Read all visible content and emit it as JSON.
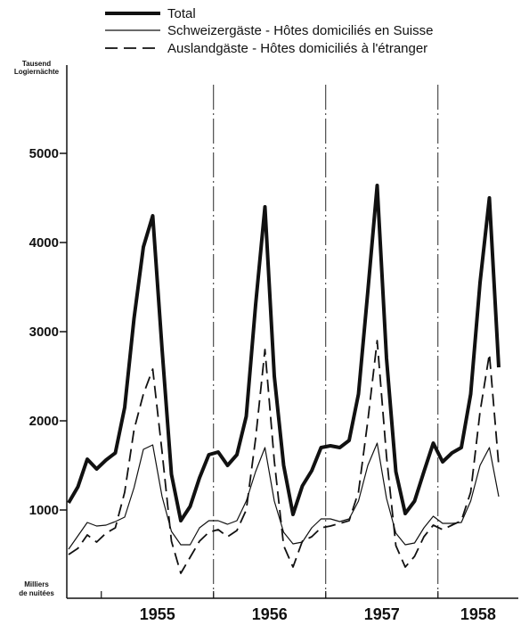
{
  "chart_data": {
    "type": "line",
    "title": "",
    "y_unit_label_top": [
      "Tausend",
      "Logiernächte"
    ],
    "y_unit_label_bottom": [
      "Milliers",
      "de nuitées"
    ],
    "ylim": [
      0,
      6000
    ],
    "yticks": [
      1000,
      2000,
      3000,
      4000,
      5000
    ],
    "ytick_labels": [
      "1000",
      "2000",
      "3000",
      "4000",
      "5000"
    ],
    "years": [
      "1955",
      "1956",
      "1957",
      "1958"
    ],
    "x_start": "1954-09",
    "grid": false,
    "legend_position": "top",
    "series": [
      {
        "name": "Total",
        "style": "thick",
        "values": [
          1080,
          1260,
          1570,
          1460,
          1560,
          1640,
          2150,
          3150,
          3950,
          4300,
          2800,
          1400,
          880,
          1040,
          1360,
          1620,
          1650,
          1500,
          1620,
          2050,
          3300,
          4400,
          2500,
          1500,
          950,
          1270,
          1440,
          1700,
          1720,
          1700,
          1780,
          2300,
          3450,
          4640,
          2700,
          1430,
          960,
          1100,
          1430,
          1750,
          1540,
          1640,
          1700,
          2300,
          3550,
          4500,
          2600
        ]
      },
      {
        "name": "Schweizergäste - Hôtes domiciliés en Suisse",
        "style": "thin",
        "values": [
          560,
          710,
          860,
          820,
          830,
          870,
          920,
          1250,
          1680,
          1730,
          1150,
          760,
          610,
          610,
          800,
          880,
          880,
          840,
          880,
          1100,
          1430,
          1700,
          1100,
          750,
          620,
          640,
          800,
          900,
          900,
          870,
          900,
          1100,
          1500,
          1750,
          1130,
          740,
          610,
          630,
          800,
          930,
          850,
          850,
          860,
          1100,
          1500,
          1700,
          1150
        ]
      },
      {
        "name": "Auslandgäste - Hôtes domiciliés à l'étranger",
        "style": "dashed",
        "values": [
          500,
          570,
          720,
          640,
          740,
          800,
          1200,
          1900,
          2300,
          2580,
          1650,
          650,
          290,
          470,
          650,
          750,
          780,
          700,
          770,
          1000,
          1800,
          2800,
          1550,
          600,
          360,
          650,
          700,
          800,
          820,
          850,
          880,
          1200,
          2000,
          2900,
          1600,
          600,
          360,
          480,
          700,
          830,
          780,
          830,
          880,
          1200,
          2100,
          2750,
          1500
        ]
      }
    ]
  }
}
